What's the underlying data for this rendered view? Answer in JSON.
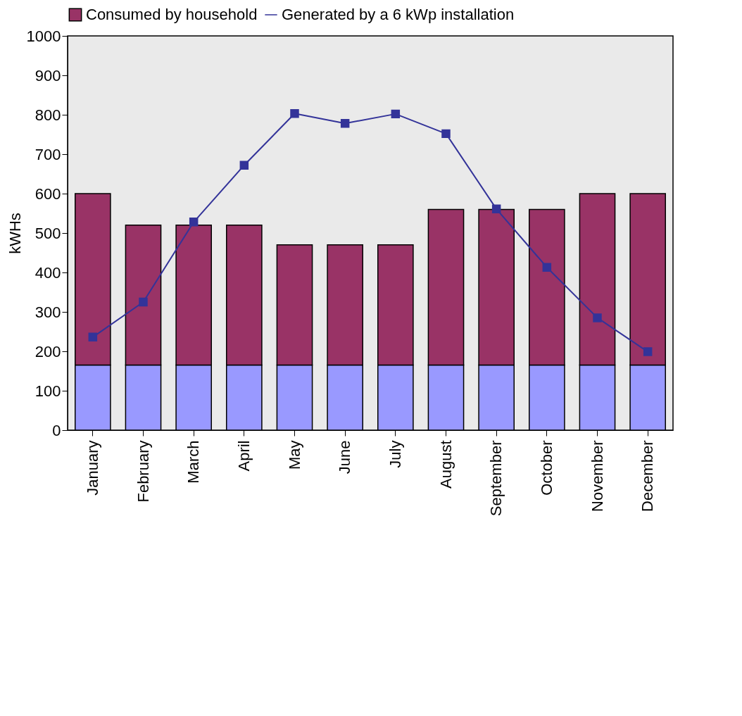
{
  "chart_data": {
    "type": "bar",
    "stacked": true,
    "ylabel": "kWHs",
    "categories": [
      "January",
      "February",
      "March",
      "April",
      "May",
      "June",
      "July",
      "August",
      "September",
      "October",
      "November",
      "December"
    ],
    "series": [
      {
        "color": "#9999ff",
        "values": [
          165,
          165,
          165,
          165,
          165,
          165,
          165,
          165,
          165,
          165,
          165,
          165
        ]
      },
      {
        "name": "Consumed by household",
        "color": "#993366",
        "values": [
          435,
          355,
          355,
          355,
          305,
          305,
          305,
          395,
          395,
          395,
          435,
          435
        ]
      },
      {
        "name": "Generated by a 6 kWp installation",
        "type": "line",
        "color": "#333399",
        "marker": "square",
        "values": [
          236,
          325,
          528,
          672,
          803,
          778,
          802,
          752,
          561,
          413,
          285,
          199
        ]
      }
    ],
    "ylim": [
      0,
      1000
    ],
    "yticks": [
      0,
      100,
      200,
      300,
      400,
      500,
      600,
      700,
      800,
      900,
      1000
    ],
    "grid": false,
    "legend": "top"
  }
}
